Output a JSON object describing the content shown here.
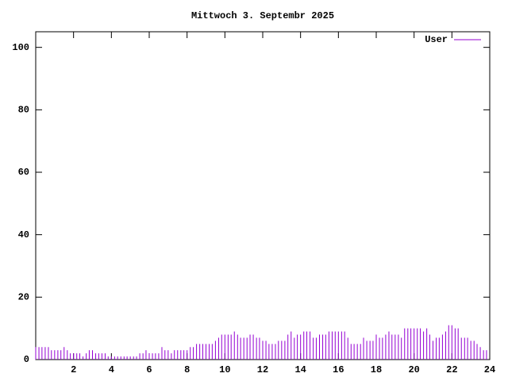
{
  "chart_data": {
    "type": "impulse",
    "title": "Mittwoch 3. Septembr 2025",
    "xlim": [
      0,
      24
    ],
    "xticks": [
      2,
      4,
      6,
      8,
      10,
      12,
      14,
      16,
      18,
      20,
      22,
      24
    ],
    "ylim": [
      0,
      105
    ],
    "yticks": [
      0,
      20,
      40,
      60,
      80,
      100
    ],
    "legend_position": "top-right",
    "x": [
      0,
      0.17,
      0.33,
      0.5,
      0.67,
      0.83,
      1,
      1.17,
      1.33,
      1.5,
      1.67,
      1.83,
      2,
      2.17,
      2.33,
      2.5,
      2.67,
      2.83,
      3,
      3.17,
      3.33,
      3.5,
      3.67,
      3.83,
      4,
      4.17,
      4.33,
      4.5,
      4.67,
      4.83,
      5,
      5.17,
      5.33,
      5.5,
      5.67,
      5.83,
      6,
      6.17,
      6.33,
      6.5,
      6.67,
      6.83,
      7,
      7.17,
      7.33,
      7.5,
      7.67,
      7.83,
      8,
      8.17,
      8.33,
      8.5,
      8.67,
      8.83,
      9,
      9.17,
      9.33,
      9.5,
      9.67,
      9.83,
      10,
      10.17,
      10.33,
      10.5,
      10.67,
      10.83,
      11,
      11.17,
      11.33,
      11.5,
      11.67,
      11.83,
      12,
      12.17,
      12.33,
      12.5,
      12.67,
      12.83,
      13,
      13.17,
      13.33,
      13.5,
      13.67,
      13.83,
      14,
      14.17,
      14.33,
      14.5,
      14.67,
      14.83,
      15,
      15.17,
      15.33,
      15.5,
      15.67,
      15.83,
      16,
      16.17,
      16.33,
      16.5,
      16.67,
      16.83,
      17,
      17.17,
      17.33,
      17.5,
      17.67,
      17.83,
      18,
      18.17,
      18.33,
      18.5,
      18.67,
      18.83,
      19,
      19.17,
      19.33,
      19.5,
      19.67,
      19.83,
      20,
      20.17,
      20.33,
      20.5,
      20.67,
      20.83,
      21,
      21.17,
      21.33,
      21.5,
      21.67,
      21.83,
      22,
      22.17,
      22.33,
      22.5,
      22.67,
      22.83,
      23,
      23.17,
      23.33,
      23.5,
      23.67,
      23.83
    ],
    "series": [
      {
        "name": "User",
        "color": "#9400d3",
        "values": [
          4,
          4,
          4,
          4,
          4,
          3,
          3,
          3,
          3,
          4,
          3,
          2,
          2,
          2,
          2,
          1,
          2,
          3,
          3,
          2,
          2,
          2,
          2,
          1,
          1,
          1,
          1,
          1,
          1,
          1,
          1,
          1,
          1,
          2,
          2,
          3,
          2,
          2,
          2,
          2,
          4,
          3,
          3,
          2,
          3,
          3,
          3,
          3,
          3,
          4,
          4,
          5,
          5,
          5,
          5,
          5,
          5,
          6,
          7,
          8,
          8,
          8,
          8,
          9,
          8,
          7,
          7,
          7,
          8,
          8,
          7,
          7,
          6,
          6,
          5,
          5,
          5,
          6,
          6,
          6,
          8,
          9,
          7,
          8,
          8,
          9,
          9,
          9,
          7,
          7,
          8,
          8,
          8,
          9,
          9,
          9,
          9,
          9,
          9,
          7,
          5,
          5,
          5,
          5,
          7,
          6,
          6,
          6,
          8,
          7,
          7,
          8,
          9,
          8,
          8,
          8,
          7,
          10,
          10,
          10,
          10,
          10,
          10,
          9,
          10,
          8,
          6,
          7,
          7,
          8,
          9,
          11,
          11,
          10,
          10,
          7,
          7,
          7,
          6,
          6,
          5,
          4,
          3,
          3
        ]
      }
    ]
  }
}
